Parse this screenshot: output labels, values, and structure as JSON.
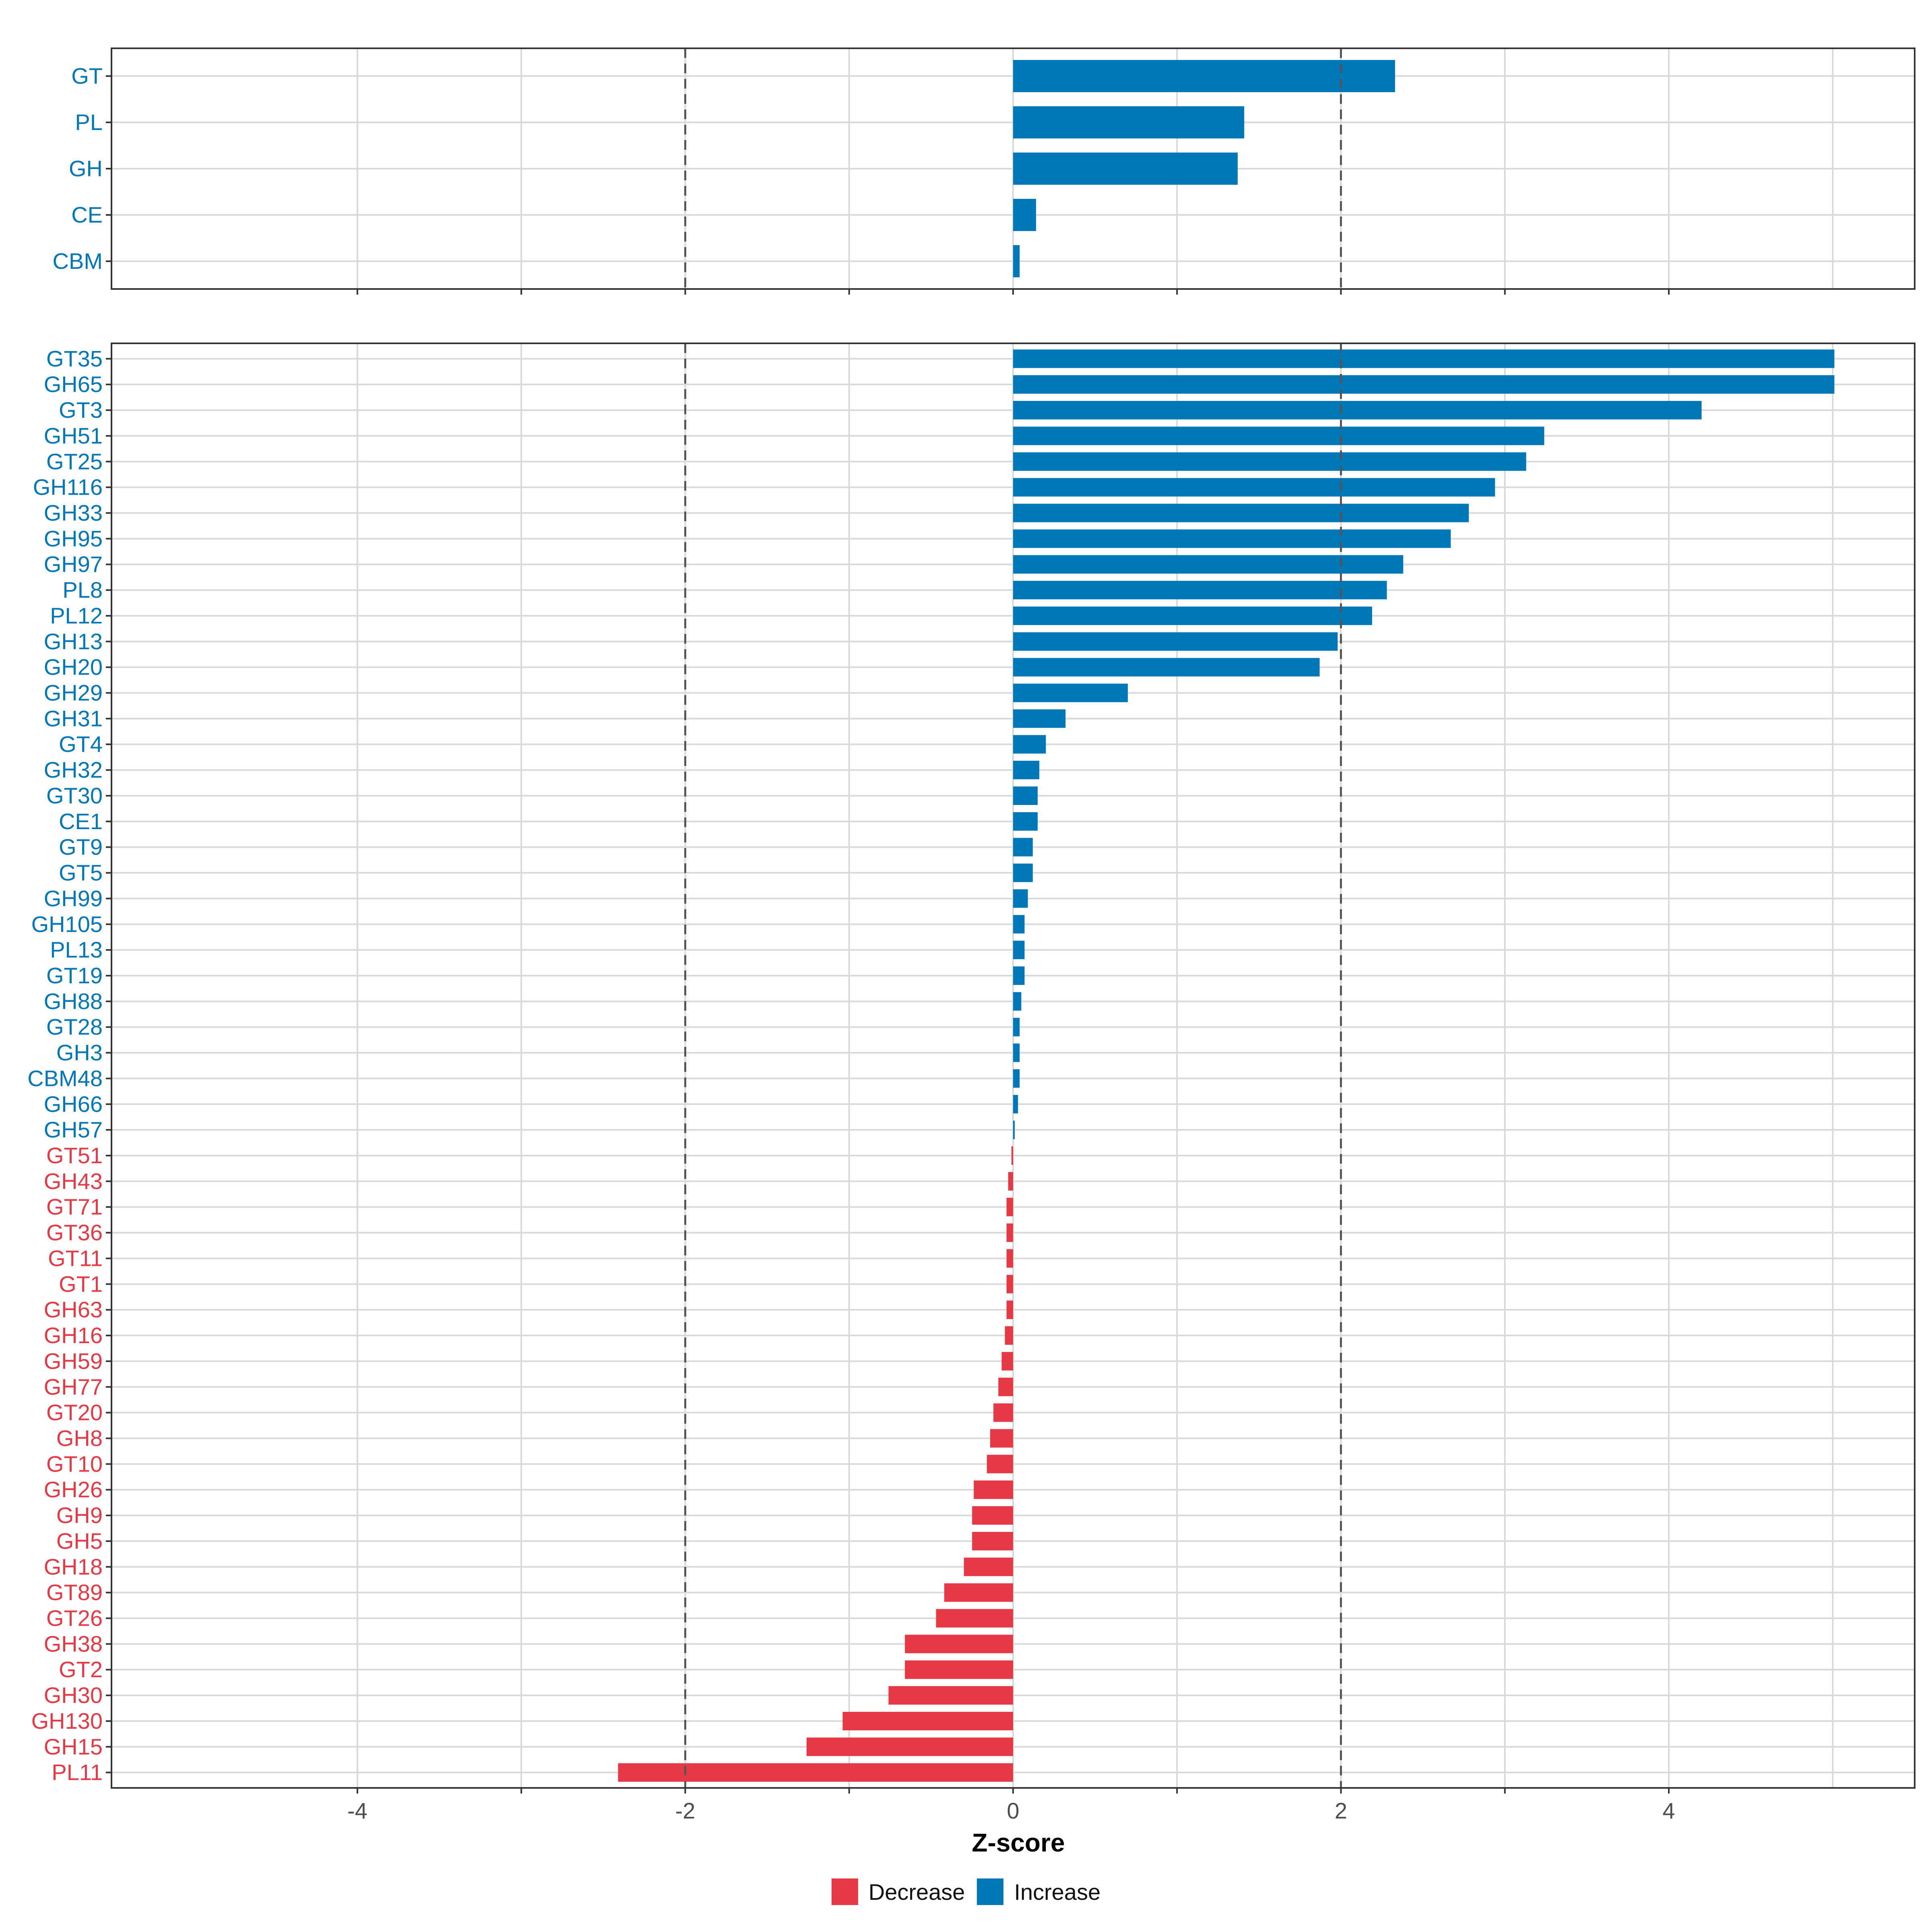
{
  "colors": {
    "increase": "#0077b6",
    "decrease": "#e63946",
    "grid": "#d9d9d9",
    "frame": "#333333",
    "refline": "#555555"
  },
  "chart_data": [
    {
      "type": "bar",
      "orientation": "horizontal",
      "panel": "category",
      "xlabel": "",
      "xlim": [
        -5.5,
        5.5
      ],
      "reference_lines": [
        -2,
        2
      ],
      "categories": [
        "GT",
        "PL",
        "GH",
        "CE",
        "CBM"
      ],
      "values": [
        2.33,
        1.41,
        1.37,
        0.14,
        0.04
      ],
      "directions": [
        "Increase",
        "Increase",
        "Increase",
        "Increase",
        "Increase"
      ]
    },
    {
      "type": "bar",
      "orientation": "horizontal",
      "panel": "family",
      "xlabel": "Z-score",
      "xlim": [
        -5.5,
        5.5
      ],
      "xticks": [
        "-4",
        "-2",
        "0",
        "2",
        "4"
      ],
      "xtick_values": [
        -4,
        -2,
        0,
        2,
        4
      ],
      "reference_lines": [
        -2,
        2
      ],
      "categories": [
        "GT35",
        "GH65",
        "GT3",
        "GH51",
        "GT25",
        "GH116",
        "GH33",
        "GH95",
        "GH97",
        "PL8",
        "PL12",
        "GH13",
        "GH20",
        "GH29",
        "GH31",
        "GT4",
        "GH32",
        "GT30",
        "CE1",
        "GT9",
        "GT5",
        "GH99",
        "GH105",
        "PL13",
        "GT19",
        "GH88",
        "GT28",
        "GH3",
        "CBM48",
        "GH66",
        "GH57",
        "GT51",
        "GH43",
        "GT71",
        "GT36",
        "GT11",
        "GT1",
        "GH63",
        "GH16",
        "GH59",
        "GH77",
        "GT20",
        "GH8",
        "GT10",
        "GH26",
        "GH9",
        "GH5",
        "GH18",
        "GT89",
        "GT26",
        "GH38",
        "GT2",
        "GH30",
        "GH130",
        "GH15",
        "PL11"
      ],
      "values": [
        5.01,
        5.01,
        4.2,
        3.24,
        3.13,
        2.94,
        2.78,
        2.67,
        2.38,
        2.28,
        2.19,
        1.98,
        1.87,
        0.7,
        0.32,
        0.2,
        0.16,
        0.15,
        0.15,
        0.12,
        0.12,
        0.09,
        0.07,
        0.07,
        0.07,
        0.05,
        0.04,
        0.04,
        0.04,
        0.03,
        0.01,
        -0.01,
        -0.03,
        -0.04,
        -0.04,
        -0.04,
        -0.04,
        -0.04,
        -0.05,
        -0.07,
        -0.09,
        -0.12,
        -0.14,
        -0.16,
        -0.24,
        -0.25,
        -0.25,
        -0.3,
        -0.42,
        -0.47,
        -0.66,
        -0.66,
        -0.76,
        -1.04,
        -1.26,
        -2.41
      ],
      "directions": [
        "Increase",
        "Increase",
        "Increase",
        "Increase",
        "Increase",
        "Increase",
        "Increase",
        "Increase",
        "Increase",
        "Increase",
        "Increase",
        "Increase",
        "Increase",
        "Increase",
        "Increase",
        "Increase",
        "Increase",
        "Increase",
        "Increase",
        "Increase",
        "Increase",
        "Increase",
        "Increase",
        "Increase",
        "Increase",
        "Increase",
        "Increase",
        "Increase",
        "Increase",
        "Increase",
        "Increase",
        "Decrease",
        "Decrease",
        "Decrease",
        "Decrease",
        "Decrease",
        "Decrease",
        "Decrease",
        "Decrease",
        "Decrease",
        "Decrease",
        "Decrease",
        "Decrease",
        "Decrease",
        "Decrease",
        "Decrease",
        "Decrease",
        "Decrease",
        "Decrease",
        "Decrease",
        "Decrease",
        "Decrease",
        "Decrease",
        "Decrease",
        "Decrease",
        "Decrease"
      ]
    }
  ],
  "legend": {
    "position": "bottom",
    "items": [
      {
        "label": "Decrease",
        "color": "#e63946"
      },
      {
        "label": "Increase",
        "color": "#0077b6"
      }
    ]
  }
}
